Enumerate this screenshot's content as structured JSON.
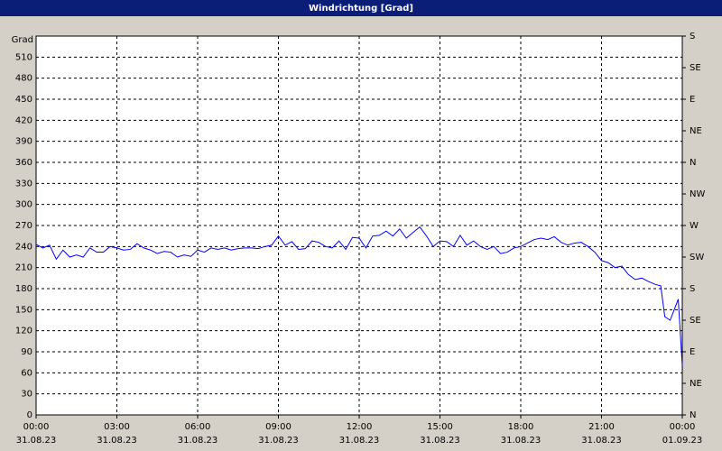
{
  "chart_data": {
    "type": "line",
    "title": "Windrichtung [Grad]",
    "y_label": "Grad",
    "x": [
      0,
      0.25,
      0.5,
      0.75,
      1,
      1.25,
      1.5,
      1.75,
      2,
      2.25,
      2.5,
      2.75,
      3,
      3.25,
      3.5,
      3.75,
      4,
      4.25,
      4.5,
      4.75,
      5,
      5.25,
      5.5,
      5.75,
      6,
      6.25,
      6.5,
      6.75,
      7,
      7.25,
      7.5,
      7.75,
      8,
      8.25,
      8.5,
      8.75,
      9,
      9.25,
      9.5,
      9.75,
      10,
      10.25,
      10.5,
      10.75,
      11,
      11.25,
      11.5,
      11.75,
      12,
      12.25,
      12.5,
      12.75,
      13,
      13.25,
      13.5,
      13.75,
      14,
      14.25,
      14.5,
      14.75,
      15,
      15.25,
      15.5,
      15.75,
      16,
      16.25,
      16.5,
      16.75,
      17,
      17.25,
      17.5,
      17.75,
      18,
      18.25,
      18.5,
      18.75,
      19,
      19.25,
      19.5,
      19.75,
      20,
      20.25,
      20.5,
      20.75,
      21,
      21.25,
      21.5,
      21.75,
      22,
      22.25,
      22.5,
      22.75,
      23,
      23.2,
      23.35,
      23.55,
      23.85,
      24
    ],
    "series": [
      {
        "name": "Windrichtung",
        "color": "#0000ff",
        "values": [
          243,
          238,
          242,
          222,
          235,
          225,
          228,
          225,
          238,
          232,
          232,
          240,
          238,
          235,
          236,
          244,
          238,
          235,
          230,
          233,
          232,
          225,
          228,
          226,
          235,
          232,
          238,
          236,
          238,
          235,
          237,
          238,
          238,
          237,
          240,
          242,
          255,
          242,
          247,
          236,
          237,
          248,
          246,
          240,
          238,
          248,
          236,
          253,
          252,
          238,
          255,
          256,
          262,
          255,
          265,
          252,
          260,
          268,
          255,
          240,
          248,
          247,
          240,
          256,
          242,
          248,
          240,
          236,
          240,
          230,
          232,
          238,
          240,
          245,
          250,
          252,
          250,
          254,
          246,
          242,
          245,
          246,
          240,
          232,
          220,
          217,
          210,
          212,
          200,
          193,
          195,
          190,
          186,
          184,
          140,
          135,
          165,
          70
        ]
      }
    ],
    "xlim": [
      0,
      24
    ],
    "xticks": [
      {
        "value": 0,
        "label": "00:00"
      },
      {
        "value": 3,
        "label": "03:00"
      },
      {
        "value": 6,
        "label": "06:00"
      },
      {
        "value": 9,
        "label": "09:00"
      },
      {
        "value": 12,
        "label": "12:00"
      },
      {
        "value": 15,
        "label": "15:00"
      },
      {
        "value": 18,
        "label": "18:00"
      },
      {
        "value": 21,
        "label": "21:00"
      },
      {
        "value": 24,
        "label": "00:00"
      }
    ],
    "xtick_dates": [
      "31.08.23",
      "31.08.23",
      "31.08.23",
      "31.08.23",
      "31.08.23",
      "31.08.23",
      "31.08.23",
      "31.08.23",
      "01.09.23"
    ],
    "ylim": [
      0,
      540
    ],
    "yticks": [
      0,
      30,
      60,
      90,
      120,
      150,
      180,
      210,
      240,
      270,
      300,
      330,
      360,
      390,
      420,
      450,
      480,
      510
    ],
    "y2lim": [
      0,
      540
    ],
    "y2ticks": [
      {
        "value": 540,
        "label": "S"
      },
      {
        "value": 495,
        "label": "SE"
      },
      {
        "value": 450,
        "label": "E"
      },
      {
        "value": 405,
        "label": "NE"
      },
      {
        "value": 360,
        "label": "N"
      },
      {
        "value": 315,
        "label": "NW"
      },
      {
        "value": 270,
        "label": "W"
      },
      {
        "value": 225,
        "label": "SW"
      },
      {
        "value": 180,
        "label": "S"
      },
      {
        "value": 135,
        "label": "SE"
      },
      {
        "value": 90,
        "label": "E"
      },
      {
        "value": 45,
        "label": "NE"
      },
      {
        "value": 0,
        "label": "N"
      }
    ],
    "grid": true
  }
}
